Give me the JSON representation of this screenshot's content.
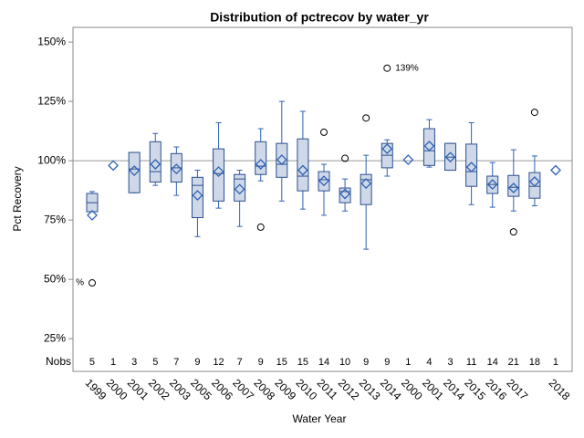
{
  "chart_data": {
    "type": "box",
    "title": "Distribution of pctrecov by water_yr",
    "x_label": "Water Year",
    "y_label": "Pct Recovery",
    "ylim": [
      11.2,
      156.2
    ],
    "yticks": [
      {
        "value": 25,
        "label": "25%"
      },
      {
        "value": 50,
        "label": "50%"
      },
      {
        "value": 75,
        "label": "75%"
      },
      {
        "value": 100,
        "label": "100%"
      },
      {
        "value": 125,
        "label": "125%"
      },
      {
        "value": 150,
        "label": "150%"
      }
    ],
    "reference_line": 100,
    "categories": [
      "1999",
      "2000",
      "2001",
      "2002",
      "2003",
      "2005",
      "2006",
      "2007",
      "2008",
      "2009",
      "2010",
      "2011",
      "2012",
      "2013",
      "2014",
      "2000",
      "2001",
      "2014",
      "2015",
      "2016",
      "2017",
      null,
      "2018"
    ],
    "nobs_label": "Nobs",
    "nobs": [
      5,
      1,
      3,
      5,
      7,
      9,
      12,
      7,
      9,
      15,
      15,
      14,
      10,
      9,
      9,
      1,
      4,
      3,
      11,
      14,
      21,
      18,
      1
    ],
    "box_color": "#cfd8e8",
    "line_color": "#2a4f8f",
    "mean_color": "#2f62b5",
    "q1": [
      78.5,
      null,
      86.5,
      91,
      91,
      76,
      83,
      83,
      94.2,
      93,
      87.3,
      87.3,
      82.3,
      81.5,
      97,
      null,
      98,
      96,
      89.2,
      86.2,
      85,
      84.2,
      null
    ],
    "median": [
      82.3,
      null,
      96.5,
      95.4,
      97,
      89.6,
      94.6,
      92.3,
      97.7,
      98.5,
      93.5,
      92,
      87,
      92,
      102.3,
      null,
      104.2,
      101.5,
      95.4,
      90,
      88.8,
      89.2,
      null
    ],
    "q3": [
      86.2,
      null,
      103.5,
      108,
      103,
      93,
      105,
      94.2,
      108,
      107.3,
      109.2,
      95.4,
      88.5,
      94.2,
      107.3,
      null,
      113.5,
      107.3,
      107,
      93.5,
      93.8,
      95,
      null
    ],
    "whisker_low": [
      78.5,
      null,
      86.5,
      89.6,
      85.4,
      68,
      80,
      72.3,
      91.5,
      83,
      79.6,
      77,
      78.8,
      62.7,
      93.5,
      null,
      97.3,
      96,
      81.5,
      80.4,
      78.8,
      81,
      null
    ],
    "whisker_high": [
      87,
      null,
      103.5,
      111.5,
      105.8,
      96,
      116,
      96,
      113.5,
      125,
      120.8,
      98.5,
      92.3,
      102.3,
      108.8,
      null,
      117.3,
      107.3,
      116,
      99.2,
      104.6,
      102,
      null
    ],
    "mean": [
      77,
      98,
      95.8,
      98.5,
      96.5,
      85.4,
      95.4,
      88,
      98.5,
      100.4,
      96,
      91.5,
      86,
      90.4,
      105,
      100.4,
      106.2,
      101.5,
      97.3,
      90,
      88.5,
      91.2,
      96
    ],
    "outliers": [
      [
        48.5
      ],
      [],
      [],
      [],
      [],
      [],
      [],
      [],
      [
        72
      ],
      [],
      [],
      [
        112
      ],
      [
        101
      ],
      [
        118
      ],
      [
        139
      ],
      [],
      [],
      [],
      [],
      [],
      [
        70
      ],
      [
        120.4
      ],
      []
    ],
    "outlier_labels": [
      [
        "%"
      ],
      [],
      [],
      [],
      [],
      [],
      [],
      [],
      [
        null
      ],
      [],
      [],
      [
        null
      ],
      [
        null
      ],
      [
        null
      ],
      [
        "139%"
      ],
      [],
      [],
      [],
      [],
      [],
      [
        null
      ],
      [
        null
      ],
      []
    ]
  }
}
